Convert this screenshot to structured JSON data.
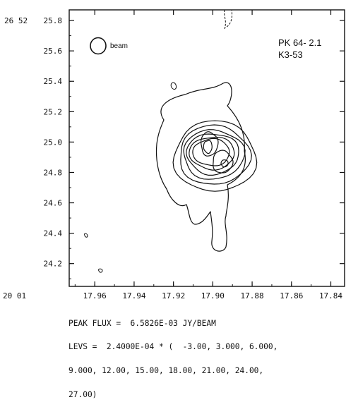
{
  "chart_data": {
    "type": "contour",
    "object_name": "PK 64- 2.1",
    "object_alias": "K3-53",
    "beam_label": "beam",
    "x_axis": {
      "prefix": "20 01",
      "ticks": [
        "17.96",
        "17.94",
        "17.92",
        "17.90",
        "17.88",
        "17.86",
        "17.84"
      ],
      "range": [
        17.973,
        17.833
      ]
    },
    "y_axis": {
      "prefix": "26 52",
      "ticks": [
        "25.8",
        "25.6",
        "25.4",
        "25.2",
        "25.0",
        "24.8",
        "24.6",
        "24.4",
        "24.2"
      ],
      "range": [
        24.05,
        25.87
      ]
    },
    "contour_levels": [
      3,
      6,
      9,
      12,
      15,
      18,
      21,
      24,
      27
    ],
    "negative_levels": [
      -3
    ],
    "peak_positions": [
      {
        "ra": 17.9025,
        "dec": 24.96
      },
      {
        "ra": 17.894,
        "dec": 24.86
      }
    ]
  },
  "footer": {
    "line1": "PEAK FLUX =  6.5826E-03 JY/BEAM",
    "line2": "LEVS =  2.4000E-04 * (  -3.00, 3.000, 6.000,",
    "line3": "9.000, 12.00, 15.00, 18.00, 21.00, 24.00,",
    "line4": "27.00)"
  }
}
